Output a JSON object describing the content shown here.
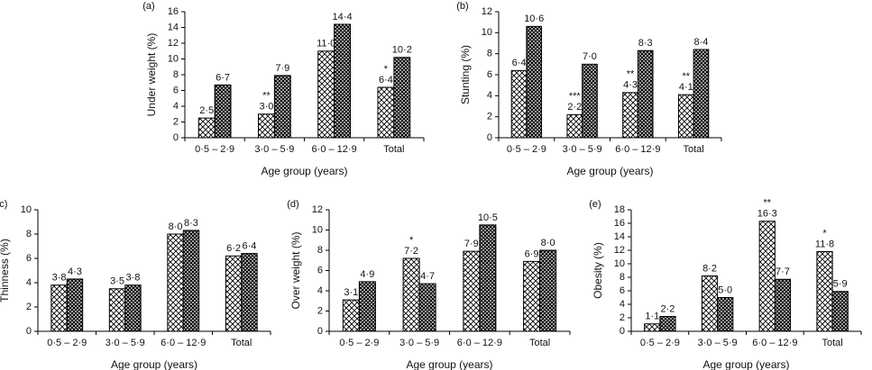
{
  "chart_data": [
    {
      "type": "bar",
      "panel": "(a)",
      "y_label": "Under weight (%)",
      "x_label": "Age group (years)",
      "categories": [
        "0·5 – 2·9",
        "3·0 – 5·9",
        "6·0 – 12·9",
        "Total"
      ],
      "series": [
        {
          "pattern": "cross",
          "values": [
            2.5,
            3.0,
            11.0,
            6.4
          ],
          "value_labels": [
            "2·5",
            "3·0",
            "11·0",
            "6·4"
          ]
        },
        {
          "pattern": "check",
          "values": [
            6.7,
            7.9,
            14.4,
            10.2
          ],
          "value_labels": [
            "6·7",
            "7·9",
            "14·4",
            "10·2"
          ]
        }
      ],
      "significance": [
        null,
        "**",
        null,
        "*"
      ],
      "ylim": [
        0,
        16
      ],
      "yticks": [
        0,
        2,
        4,
        6,
        8,
        10,
        12,
        14,
        16
      ]
    },
    {
      "type": "bar",
      "panel": "(b)",
      "y_label": "Stunting (%)",
      "x_label": "Age group (years)",
      "categories": [
        "0·5 – 2·9",
        "3·0 – 5·9",
        "6·0 – 12·9",
        "Total"
      ],
      "series": [
        {
          "pattern": "cross",
          "values": [
            6.4,
            2.2,
            4.3,
            4.1
          ],
          "value_labels": [
            "6·4",
            "2·2",
            "4·3",
            "4·1"
          ]
        },
        {
          "pattern": "check",
          "values": [
            10.6,
            7.0,
            8.3,
            8.4
          ],
          "value_labels": [
            "10·6",
            "7·0",
            "8·3",
            "8·4"
          ]
        }
      ],
      "significance": [
        null,
        "***",
        "**",
        "**"
      ],
      "ylim": [
        0,
        12
      ],
      "yticks": [
        0,
        2,
        4,
        6,
        8,
        10,
        12
      ]
    },
    {
      "type": "bar",
      "panel": "(c)",
      "y_label": "Thinness (%)",
      "x_label": "Age group (years)",
      "categories": [
        "0·5 – 2·9",
        "3·0 – 5·9",
        "6·0 – 12·9",
        "Total"
      ],
      "series": [
        {
          "pattern": "cross",
          "values": [
            3.8,
            3.5,
            8.0,
            6.2
          ],
          "value_labels": [
            "3·8",
            "3·5",
            "8·0",
            "6·2"
          ]
        },
        {
          "pattern": "check",
          "values": [
            4.3,
            3.8,
            8.3,
            6.4
          ],
          "value_labels": [
            "4·3",
            "3·8",
            "8·3",
            "6·4"
          ]
        }
      ],
      "ylim": [
        0,
        10
      ],
      "yticks": [
        0,
        2,
        4,
        6,
        8,
        10
      ]
    },
    {
      "type": "bar",
      "panel": "(d)",
      "y_label": "Over weight (%)",
      "x_label": "Age group (years)",
      "categories": [
        "0·5 – 2·9",
        "3·0 – 5·9",
        "6·0 – 12·9",
        "Total"
      ],
      "series": [
        {
          "pattern": "cross",
          "values": [
            3.1,
            7.2,
            7.9,
            6.9
          ],
          "value_labels": [
            "3·1",
            "7·2",
            "7·9",
            "6·9"
          ]
        },
        {
          "pattern": "check",
          "values": [
            4.9,
            4.7,
            10.5,
            8.0
          ],
          "value_labels": [
            "4·9",
            "4·7",
            "10·5",
            "8·0"
          ]
        }
      ],
      "significance": [
        null,
        "*",
        null,
        null
      ],
      "ylim": [
        0,
        12
      ],
      "yticks": [
        0,
        2,
        4,
        6,
        8,
        10,
        12
      ]
    },
    {
      "type": "bar",
      "panel": "(e)",
      "y_label": "Obesity (%)",
      "x_label": "Age group (years)",
      "categories": [
        "0·5 – 2·9",
        "3·0 – 5·9",
        "6·0 – 12·9",
        "Total"
      ],
      "series": [
        {
          "pattern": "cross",
          "values": [
            1.1,
            8.2,
            16.3,
            11.8
          ],
          "value_labels": [
            "1·1",
            "8·2",
            "16·3",
            "11·8"
          ]
        },
        {
          "pattern": "check",
          "values": [
            2.2,
            5.0,
            7.7,
            5.9
          ],
          "value_labels": [
            "2·2",
            "5·0",
            "7·7",
            "5·9"
          ]
        }
      ],
      "significance": [
        null,
        null,
        "**",
        "*"
      ],
      "ylim": [
        0,
        18
      ],
      "yticks": [
        0,
        2,
        4,
        6,
        8,
        10,
        12,
        14,
        16,
        18
      ]
    }
  ]
}
